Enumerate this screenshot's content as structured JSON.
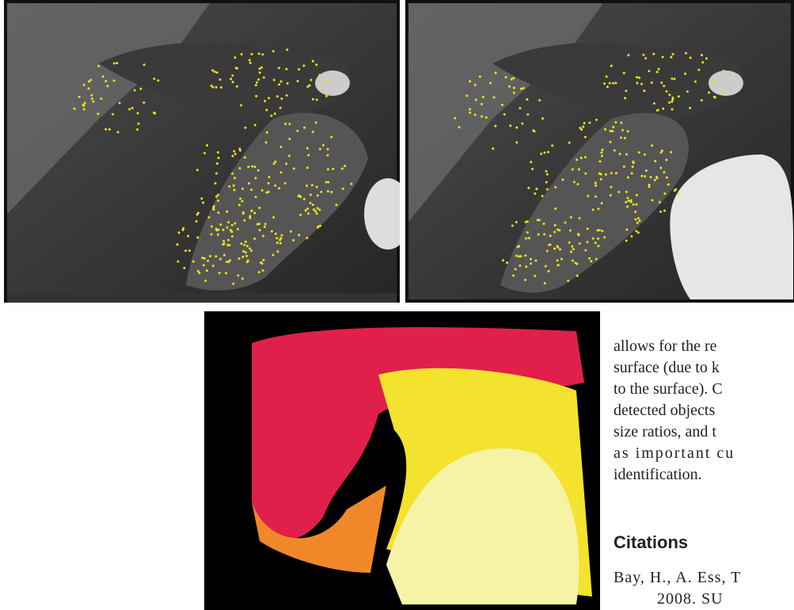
{
  "body_text": {
    "lines": [
      "allows for the re",
      "surface (due to k",
      "to the surface). C",
      "detected objects",
      "size ratios, and t",
      "as important cu",
      "identification."
    ]
  },
  "section": {
    "heading": "Citations"
  },
  "references": [
    {
      "lines": [
        "Bay, H., A. Ess, T",
        "2008. SU"
      ]
    }
  ]
}
